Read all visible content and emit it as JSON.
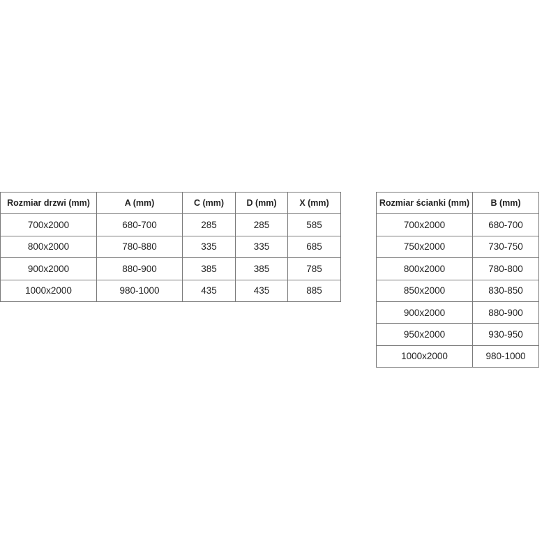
{
  "door_table": {
    "headers": [
      "Rozmiar drzwi (mm)",
      "A (mm)",
      "C (mm)",
      "D (mm)",
      "X (mm)"
    ],
    "rows": [
      [
        "700x2000",
        "680-700",
        "285",
        "285",
        "585"
      ],
      [
        "800x2000",
        "780-880",
        "335",
        "335",
        "685"
      ],
      [
        "900x2000",
        "880-900",
        "385",
        "385",
        "785"
      ],
      [
        "1000x2000",
        "980-1000",
        "435",
        "435",
        "885"
      ]
    ]
  },
  "wall_table": {
    "headers": [
      "Rozmiar ścianki (mm)",
      "B (mm)"
    ],
    "rows": [
      [
        "700x2000",
        "680-700"
      ],
      [
        "750x2000",
        "730-750"
      ],
      [
        "800x2000",
        "780-800"
      ],
      [
        "850x2000",
        "830-850"
      ],
      [
        "900x2000",
        "880-900"
      ],
      [
        "950x2000",
        "930-950"
      ],
      [
        "1000x2000",
        "980-1000"
      ]
    ]
  }
}
